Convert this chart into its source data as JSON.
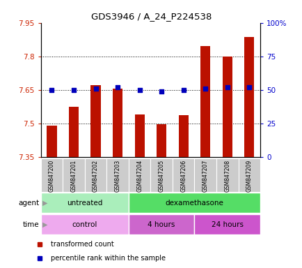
{
  "title": "GDS3946 / A_24_P224538",
  "samples": [
    "GSM847200",
    "GSM847201",
    "GSM847202",
    "GSM847203",
    "GSM847204",
    "GSM847205",
    "GSM847206",
    "GSM847207",
    "GSM847208",
    "GSM847209"
  ],
  "transformed_count": [
    7.49,
    7.575,
    7.67,
    7.655,
    7.54,
    7.495,
    7.535,
    7.845,
    7.8,
    7.885
  ],
  "percentile_rank": [
    50,
    50,
    51,
    52,
    50,
    49,
    50,
    51,
    52,
    52
  ],
  "ymin": 7.35,
  "ymax": 7.95,
  "yticks": [
    7.35,
    7.5,
    7.65,
    7.8,
    7.95
  ],
  "ytick_labels": [
    "7.35",
    "7.5",
    "7.65",
    "7.8",
    "7.95"
  ],
  "y2min": 0,
  "y2max": 100,
  "y2ticks": [
    0,
    25,
    50,
    75,
    100
  ],
  "y2tick_labels": [
    "0",
    "25",
    "50",
    "75",
    "100%"
  ],
  "bar_color": "#bb1100",
  "dot_color": "#0000bb",
  "bar_bottom": 7.35,
  "agent_groups": [
    {
      "label": "untreated",
      "start": 0,
      "end": 4,
      "color": "#aaeebb"
    },
    {
      "label": "dexamethasone",
      "start": 4,
      "end": 10,
      "color": "#55dd66"
    }
  ],
  "time_groups": [
    {
      "label": "control",
      "start": 0,
      "end": 4,
      "color": "#eeaaee"
    },
    {
      "label": "4 hours",
      "start": 4,
      "end": 7,
      "color": "#cc66cc"
    },
    {
      "label": "24 hours",
      "start": 7,
      "end": 10,
      "color": "#cc55cc"
    }
  ],
  "legend_items": [
    {
      "label": "transformed count",
      "color": "#bb1100"
    },
    {
      "label": "percentile rank within the sample",
      "color": "#0000bb"
    }
  ],
  "tick_label_color_left": "#cc2200",
  "tick_label_color_right": "#0000cc",
  "sample_box_color": "#cccccc"
}
